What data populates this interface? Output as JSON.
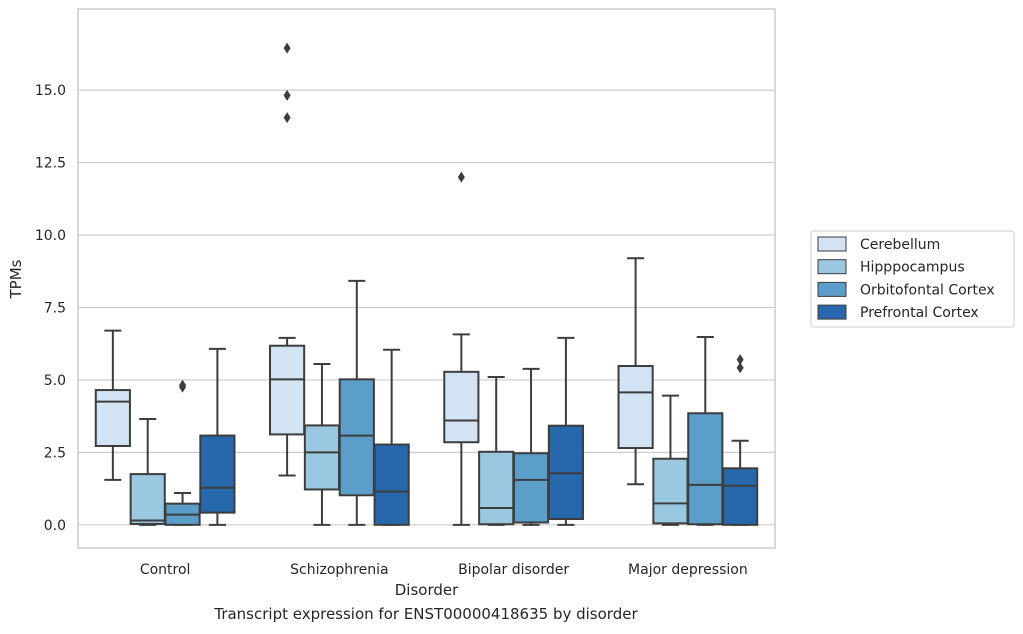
{
  "caption": "Transcript expression for ENST00000418635 by disorder",
  "chart_data": {
    "type": "boxplot",
    "xlabel": "Disorder",
    "ylabel": "TPMs",
    "ylim": [
      -0.8,
      17.8
    ],
    "yticks": [
      "0.0",
      "2.5",
      "5.0",
      "7.5",
      "10.0",
      "12.5",
      "15.0"
    ],
    "yticks_values": [
      0,
      2.5,
      5,
      7.5,
      10,
      12.5,
      15
    ],
    "grid": "horizontal",
    "legend_position": "center-right outside",
    "categories": [
      "Control",
      "Schizophrenia",
      "Bipolar disorder",
      "Major depression"
    ],
    "series": [
      {
        "name": "Cerebellum",
        "color": "#d2e3f3",
        "boxes": [
          {
            "whislo": 1.55,
            "q1": 2.72,
            "med": 4.25,
            "q3": 4.65,
            "whishi": 6.7,
            "fliers": []
          },
          {
            "whislo": 1.7,
            "q1": 3.12,
            "med": 5.02,
            "q3": 6.18,
            "whishi": 6.45,
            "fliers": [
              14.05,
              14.82,
              16.45
            ]
          },
          {
            "whislo": 0.0,
            "q1": 2.85,
            "med": 3.6,
            "q3": 5.28,
            "whishi": 6.57,
            "fliers": [
              12.0
            ]
          },
          {
            "whislo": 1.4,
            "q1": 2.65,
            "med": 4.57,
            "q3": 5.48,
            "whishi": 9.2,
            "fliers": []
          }
        ]
      },
      {
        "name": "Hipppocampus",
        "color": "#9ac8e0",
        "boxes": [
          {
            "whislo": 0.0,
            "q1": 0.03,
            "med": 0.15,
            "q3": 1.75,
            "whishi": 3.65,
            "fliers": []
          },
          {
            "whislo": 0.0,
            "q1": 1.22,
            "med": 2.5,
            "q3": 3.43,
            "whishi": 5.55,
            "fliers": []
          },
          {
            "whislo": 0.0,
            "q1": 0.02,
            "med": 0.58,
            "q3": 2.52,
            "whishi": 5.1,
            "fliers": []
          },
          {
            "whislo": 0.0,
            "q1": 0.05,
            "med": 0.74,
            "q3": 2.28,
            "whishi": 4.46,
            "fliers": []
          }
        ]
      },
      {
        "name": "Orbitofontal Cortex",
        "color": "#5a9ec9",
        "boxes": [
          {
            "whislo": 0.0,
            "q1": 0.0,
            "med": 0.35,
            "q3": 0.73,
            "whishi": 1.1,
            "fliers": [
              4.75,
              4.82
            ]
          },
          {
            "whislo": 0.0,
            "q1": 1.02,
            "med": 3.08,
            "q3": 5.02,
            "whishi": 8.42,
            "fliers": []
          },
          {
            "whislo": 0.0,
            "q1": 0.08,
            "med": 1.55,
            "q3": 2.47,
            "whishi": 5.38,
            "fliers": []
          },
          {
            "whislo": 0.0,
            "q1": 0.02,
            "med": 1.38,
            "q3": 3.85,
            "whishi": 6.48,
            "fliers": []
          }
        ]
      },
      {
        "name": "Prefrontal Cortex",
        "color": "#2668ab",
        "boxes": [
          {
            "whislo": 0.0,
            "q1": 0.42,
            "med": 1.28,
            "q3": 3.08,
            "whishi": 6.07,
            "fliers": []
          },
          {
            "whislo": 0.0,
            "q1": 0.0,
            "med": 1.15,
            "q3": 2.77,
            "whishi": 6.04,
            "fliers": []
          },
          {
            "whislo": 0.0,
            "q1": 0.2,
            "med": 1.78,
            "q3": 3.42,
            "whishi": 6.45,
            "fliers": []
          },
          {
            "whislo": 0.0,
            "q1": 0.0,
            "med": 1.35,
            "q3": 1.95,
            "whishi": 2.9,
            "fliers": [
              5.42,
              5.7
            ]
          }
        ]
      }
    ]
  }
}
